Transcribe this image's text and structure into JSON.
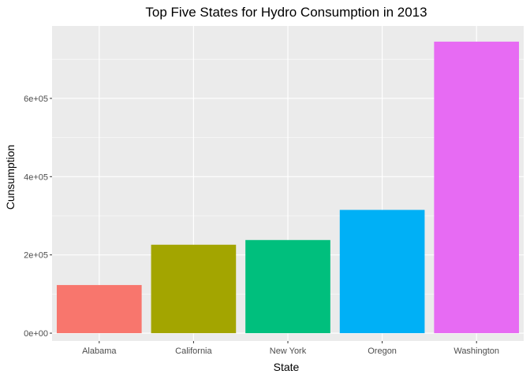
{
  "chart_data": {
    "type": "bar",
    "title": "Top Five States for Hydro Consumption in 2013",
    "xlabel": "State",
    "ylabel": "Cunsumption",
    "categories": [
      "Alabama",
      "California",
      "New York",
      "Oregon",
      "Washington"
    ],
    "values": [
      123000,
      226000,
      238000,
      315000,
      745000
    ],
    "ylim": [
      -20000,
      785000
    ],
    "yticks": [
      0,
      200000,
      400000,
      600000
    ],
    "ytick_labels": [
      "0e+00",
      "2e+05",
      "4e+05",
      "6e+05"
    ],
    "colors": [
      "#F8766D",
      "#A3A500",
      "#00BF7D",
      "#00B0F6",
      "#E76BF3"
    ],
    "panel_background": "#EBEBEB",
    "grid": true,
    "legend": "none"
  }
}
